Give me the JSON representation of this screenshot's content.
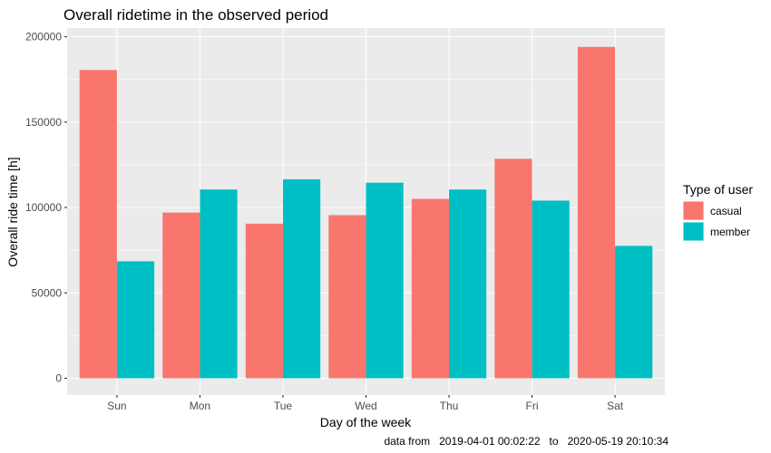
{
  "chart_data": {
    "type": "bar",
    "title": "Overall ridetime in the observed period",
    "xlabel": "Day of the week",
    "ylabel": "Overall ride time [h]",
    "categories": [
      "Sun",
      "Mon",
      "Tue",
      "Wed",
      "Thu",
      "Fri",
      "Sat"
    ],
    "series": [
      {
        "name": "casual",
        "color": "#F8766D",
        "values": [
          180500,
          97000,
          90500,
          95500,
          105000,
          128500,
          194000
        ]
      },
      {
        "name": "member",
        "color": "#00BFC4",
        "values": [
          68500,
          110500,
          116500,
          114500,
          110500,
          104000,
          77500
        ]
      }
    ],
    "ylim": [
      0,
      200000
    ],
    "yticks": [
      "0",
      "50000",
      "100000",
      "150000",
      "200000"
    ],
    "grid": true,
    "legend": {
      "title": "Type of user",
      "position": "right"
    },
    "caption": "data from   2019-04-01 00:02:22   to   2020-05-19 20:10:34"
  }
}
